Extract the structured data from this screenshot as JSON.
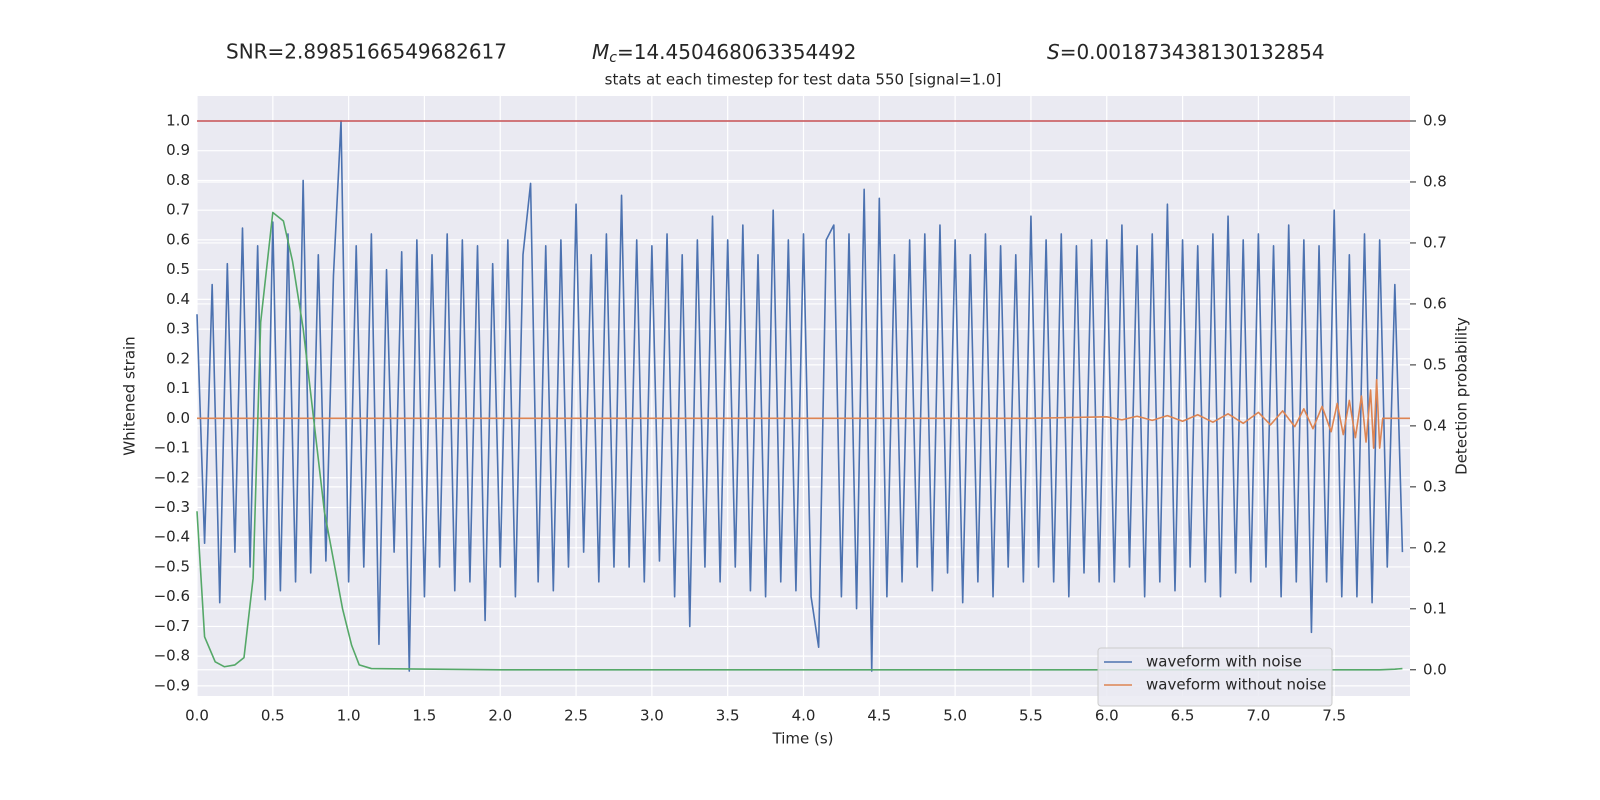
{
  "chart_data": {
    "type": "line",
    "stats": [
      {
        "text": "SNR=2.8985166549682617"
      },
      {
        "symbol": "M",
        "subscript": "c",
        "text": "=14.450468063354492"
      },
      {
        "symbol": "S",
        "text": "=0.001873438130132854"
      }
    ],
    "title": "stats at each timestep for test data 550 [signal=1.0]",
    "xlabel": "Time (s)",
    "ylabel": "Whitened strain",
    "y2label": "Detection probability",
    "xlim": [
      0,
      8.0
    ],
    "ylim": [
      -0.934,
      1.084
    ],
    "y2lim": [
      -0.043,
      0.941
    ],
    "xticks": [
      {
        "value": 0,
        "label": "0.0"
      },
      0.5,
      {
        "value": 1,
        "label": "1.0"
      },
      1.5,
      {
        "value": 2,
        "label": "2.0"
      },
      2.5,
      {
        "value": 3,
        "label": "3.0"
      },
      3.5,
      {
        "value": 4,
        "label": "4.0"
      },
      4.5,
      {
        "value": 5,
        "label": "5.0"
      },
      5.5,
      {
        "value": 6,
        "label": "6.0"
      },
      6.5,
      {
        "value": 7,
        "label": "7.0"
      },
      7.5
    ],
    "yticks": [
      {
        "value": -0.9,
        "label": "−0.9"
      },
      {
        "value": -0.8,
        "label": "−0.8"
      },
      {
        "value": -0.7,
        "label": "−0.7"
      },
      {
        "value": -0.6,
        "label": "−0.6"
      },
      {
        "value": -0.5,
        "label": "−0.5"
      },
      {
        "value": -0.4,
        "label": "−0.4"
      },
      {
        "value": -0.3,
        "label": "−0.3"
      },
      {
        "value": -0.2,
        "label": "−0.2"
      },
      {
        "value": -0.1,
        "label": "−0.1"
      },
      {
        "value": 0,
        "label": "0.0"
      },
      0.1,
      0.2,
      0.3,
      0.4,
      0.5,
      0.6,
      0.7,
      0.8,
      0.9,
      {
        "value": 1,
        "label": "1.0"
      }
    ],
    "y2ticks": [
      {
        "value": 0,
        "label": "0.0"
      },
      0.1,
      0.2,
      0.3,
      0.4,
      0.5,
      0.6,
      0.7,
      0.8,
      0.9
    ],
    "grid": true,
    "legend": "lower right",
    "hline": {
      "value": 0.9,
      "axis": "y2",
      "color": "#c44e52"
    },
    "series": [
      {
        "name": "waveform with noise",
        "color": "#4c72b0",
        "x": [
          0,
          0.05,
          0.1,
          0.15,
          0.2,
          0.25,
          0.3,
          0.35,
          0.4,
          0.45,
          0.5,
          0.55,
          0.6,
          0.65,
          0.7,
          0.75,
          0.8,
          0.85,
          0.9,
          0.95,
          1.0,
          1.05,
          1.1,
          1.15,
          1.2,
          1.25,
          1.3,
          1.35,
          1.4,
          1.45,
          1.5,
          1.55,
          1.6,
          1.65,
          1.7,
          1.75,
          1.8,
          1.85,
          1.9,
          1.95,
          2.0,
          2.05,
          2.1,
          2.15,
          2.2,
          2.25,
          2.3,
          2.35,
          2.4,
          2.45,
          2.5,
          2.55,
          2.6,
          2.65,
          2.7,
          2.75,
          2.8,
          2.85,
          2.9,
          2.95,
          3.0,
          3.05,
          3.1,
          3.15,
          3.2,
          3.25,
          3.3,
          3.35,
          3.4,
          3.45,
          3.5,
          3.55,
          3.6,
          3.65,
          3.7,
          3.75,
          3.8,
          3.85,
          3.9,
          3.95,
          4.0,
          4.05,
          4.1,
          4.15,
          4.2,
          4.25,
          4.3,
          4.35,
          4.4,
          4.45,
          4.5,
          4.55,
          4.6,
          4.65,
          4.7,
          4.75,
          4.8,
          4.85,
          4.9,
          4.95,
          5.0,
          5.05,
          5.1,
          5.15,
          5.2,
          5.25,
          5.3,
          5.35,
          5.4,
          5.45,
          5.5,
          5.55,
          5.6,
          5.65,
          5.7,
          5.75,
          5.8,
          5.85,
          5.9,
          5.95,
          6.0,
          6.05,
          6.1,
          6.15,
          6.2,
          6.25,
          6.3,
          6.35,
          6.4,
          6.45,
          6.5,
          6.55,
          6.6,
          6.65,
          6.7,
          6.75,
          6.8,
          6.85,
          6.9,
          6.95,
          7.0,
          7.05,
          7.1,
          7.15,
          7.2,
          7.25,
          7.3,
          7.35,
          7.4,
          7.45,
          7.5,
          7.55,
          7.6,
          7.65,
          7.7,
          7.75,
          7.8,
          7.85,
          7.9,
          7.95
        ],
        "values": [
          0.35,
          -0.42,
          0.45,
          -0.62,
          0.52,
          -0.45,
          0.64,
          -0.5,
          0.58,
          -0.61,
          0.66,
          -0.58,
          0.62,
          -0.55,
          0.8,
          -0.52,
          0.55,
          -0.48,
          0.48,
          1.0,
          -0.55,
          0.58,
          -0.5,
          0.62,
          -0.76,
          0.5,
          -0.45,
          0.56,
          -0.85,
          0.6,
          -0.6,
          0.55,
          -0.5,
          0.62,
          -0.58,
          0.6,
          -0.55,
          0.58,
          -0.68,
          0.52,
          -0.5,
          0.6,
          -0.6,
          0.55,
          0.79,
          -0.55,
          0.58,
          -0.58,
          0.6,
          -0.5,
          0.72,
          -0.45,
          0.55,
          -0.55,
          0.62,
          -0.5,
          0.75,
          -0.5,
          0.6,
          -0.55,
          0.58,
          -0.48,
          0.62,
          -0.6,
          0.55,
          -0.7,
          0.6,
          -0.5,
          0.68,
          -0.55,
          0.6,
          -0.5,
          0.65,
          -0.58,
          0.55,
          -0.6,
          0.7,
          -0.55,
          0.6,
          -0.58,
          0.62,
          -0.6,
          -0.77,
          0.6,
          0.65,
          -0.6,
          0.62,
          -0.64,
          0.77,
          -0.85,
          0.74,
          -0.6,
          0.55,
          -0.55,
          0.6,
          -0.5,
          0.62,
          -0.58,
          0.65,
          -0.52,
          0.6,
          -0.62,
          0.55,
          -0.55,
          0.62,
          -0.6,
          0.58,
          -0.5,
          0.55,
          -0.55,
          0.68,
          -0.5,
          0.6,
          -0.55,
          0.62,
          -0.6,
          0.58,
          -0.52,
          0.6,
          -0.55,
          0.6,
          -0.55,
          0.65,
          -0.5,
          0.58,
          -0.6,
          0.62,
          -0.55,
          0.72,
          -0.58,
          0.6,
          -0.5,
          0.58,
          -0.55,
          0.62,
          -0.6,
          0.68,
          -0.52,
          0.6,
          -0.55,
          0.62,
          -0.5,
          0.58,
          -0.6,
          0.65,
          -0.55,
          0.6,
          -0.72,
          0.58,
          -0.55,
          0.7,
          -0.6,
          0.55,
          -0.6,
          0.62,
          -0.62,
          0.6,
          -0.5,
          0.45,
          -0.45
        ]
      },
      {
        "name": "waveform without noise",
        "color": "#dd8452",
        "x": [
          0,
          0.5,
          1.0,
          1.5,
          2.0,
          2.5,
          3.0,
          3.5,
          4.0,
          4.5,
          5.0,
          5.5,
          6.0,
          6.1,
          6.2,
          6.3,
          6.4,
          6.5,
          6.6,
          6.7,
          6.8,
          6.9,
          7.0,
          7.08,
          7.16,
          7.24,
          7.3,
          7.36,
          7.42,
          7.48,
          7.52,
          7.56,
          7.6,
          7.64,
          7.68,
          7.71,
          7.74,
          7.76,
          7.78,
          7.8,
          7.82,
          8.0
        ],
        "values": [
          0,
          0,
          0,
          0,
          0,
          0,
          0,
          0,
          0,
          0,
          0,
          0,
          0.005,
          -0.005,
          0.007,
          -0.007,
          0.009,
          -0.01,
          0.012,
          -0.013,
          0.015,
          -0.017,
          0.02,
          -0.022,
          0.025,
          -0.028,
          0.032,
          -0.035,
          0.04,
          -0.045,
          0.05,
          -0.055,
          0.06,
          -0.065,
          0.075,
          -0.08,
          0.095,
          -0.1,
          0.13,
          -0.1,
          0,
          0
        ]
      },
      {
        "name": "detection probability",
        "legend": false,
        "axis": "y2",
        "color": "#55a868",
        "x": [
          0,
          0.05,
          0.12,
          0.18,
          0.25,
          0.31,
          0.37,
          0.42,
          0.5,
          0.57,
          0.63,
          0.7,
          0.77,
          0.84,
          0.9,
          0.96,
          1.02,
          1.07,
          1.15,
          2.0,
          3.0,
          4.0,
          5.0,
          6.0,
          7.0,
          7.8,
          7.9,
          7.95
        ],
        "values": [
          0.26,
          0.054,
          0.013,
          0.005,
          0.008,
          0.02,
          0.15,
          0.57,
          0.75,
          0.736,
          0.67,
          0.56,
          0.41,
          0.26,
          0.18,
          0.1,
          0.04,
          0.008,
          0.002,
          0,
          0,
          0,
          0,
          0,
          0,
          0,
          0.001,
          0.002
        ]
      }
    ]
  }
}
